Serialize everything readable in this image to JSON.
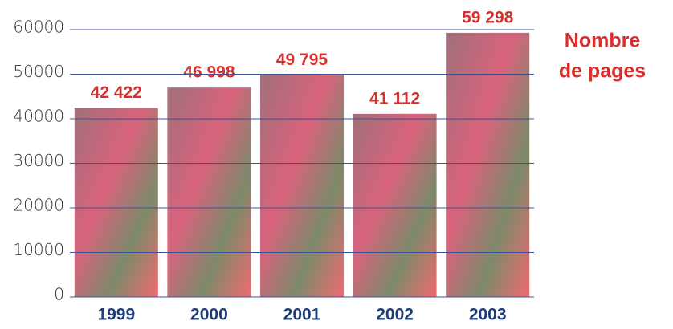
{
  "chart_data": {
    "type": "bar",
    "title_lines": [
      "Nombre",
      "de pages"
    ],
    "categories": [
      "1999",
      "2000",
      "2001",
      "2002",
      "2003"
    ],
    "values": [
      42422,
      46998,
      49795,
      41112,
      59298
    ],
    "value_labels": [
      "42 422",
      "46 998",
      "49 795",
      "41 112",
      "59 298"
    ],
    "color": "#d9637d",
    "ylim": [
      0,
      60000
    ],
    "yticks": [
      0,
      10000,
      20000,
      30000,
      40000,
      50000,
      60000
    ],
    "grid": true
  }
}
